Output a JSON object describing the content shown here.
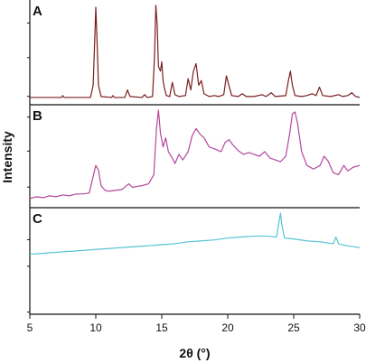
{
  "chart_data": {
    "type": "line",
    "xlabel": "2θ (°)",
    "ylabel": "Intensity",
    "xlim": [
      5,
      30
    ],
    "x_ticks": [
      "5",
      "10",
      "15",
      "20",
      "25",
      "30"
    ],
    "legend": "none",
    "grid": false,
    "panels": [
      {
        "label": "A",
        "color": "#7a1f1f",
        "ylim": [
          0,
          100
        ],
        "points": [
          [
            5.0,
            2
          ],
          [
            7.4,
            2
          ],
          [
            7.5,
            4
          ],
          [
            7.6,
            2
          ],
          [
            9.6,
            2
          ],
          [
            9.8,
            15
          ],
          [
            9.9,
            55
          ],
          [
            10.0,
            98
          ],
          [
            10.1,
            60
          ],
          [
            10.2,
            15
          ],
          [
            10.4,
            3
          ],
          [
            11.2,
            2
          ],
          [
            11.3,
            4
          ],
          [
            11.4,
            2
          ],
          [
            12.2,
            2
          ],
          [
            12.4,
            10
          ],
          [
            12.6,
            3
          ],
          [
            13.5,
            2
          ],
          [
            13.7,
            5
          ],
          [
            13.9,
            2
          ],
          [
            14.3,
            3
          ],
          [
            14.45,
            45
          ],
          [
            14.55,
            100
          ],
          [
            14.65,
            80
          ],
          [
            14.75,
            35
          ],
          [
            14.9,
            30
          ],
          [
            15.0,
            40
          ],
          [
            15.1,
            20
          ],
          [
            15.2,
            12
          ],
          [
            15.35,
            4
          ],
          [
            15.6,
            3
          ],
          [
            15.8,
            18
          ],
          [
            16.0,
            5
          ],
          [
            16.3,
            3
          ],
          [
            16.8,
            4
          ],
          [
            17.0,
            22
          ],
          [
            17.2,
            10
          ],
          [
            17.4,
            30
          ],
          [
            17.6,
            38
          ],
          [
            17.8,
            15
          ],
          [
            18.0,
            20
          ],
          [
            18.2,
            6
          ],
          [
            18.6,
            3
          ],
          [
            19.0,
            4
          ],
          [
            19.3,
            3
          ],
          [
            19.7,
            5
          ],
          [
            19.9,
            25
          ],
          [
            20.1,
            14
          ],
          [
            20.3,
            4
          ],
          [
            20.8,
            3
          ],
          [
            21.1,
            6
          ],
          [
            21.4,
            3
          ],
          [
            22.0,
            3
          ],
          [
            22.6,
            5
          ],
          [
            22.9,
            3
          ],
          [
            23.3,
            7
          ],
          [
            23.6,
            3
          ],
          [
            24.4,
            4
          ],
          [
            24.6,
            20
          ],
          [
            24.75,
            30
          ],
          [
            24.9,
            15
          ],
          [
            25.1,
            4
          ],
          [
            25.6,
            3
          ],
          [
            26.0,
            4
          ],
          [
            26.4,
            6
          ],
          [
            26.7,
            4
          ],
          [
            26.95,
            13
          ],
          [
            27.2,
            4
          ],
          [
            27.8,
            3
          ],
          [
            28.4,
            5
          ],
          [
            28.7,
            3
          ],
          [
            29.1,
            4
          ],
          [
            29.4,
            7
          ],
          [
            29.7,
            3
          ],
          [
            30.0,
            2
          ]
        ]
      },
      {
        "label": "B",
        "color": "#b5479f",
        "ylim": [
          0,
          100
        ],
        "points": [
          [
            5.0,
            4
          ],
          [
            5.5,
            6
          ],
          [
            6.0,
            5
          ],
          [
            6.5,
            7
          ],
          [
            7.0,
            6
          ],
          [
            7.5,
            8
          ],
          [
            8.0,
            7
          ],
          [
            8.5,
            9
          ],
          [
            9.0,
            9
          ],
          [
            9.5,
            10
          ],
          [
            9.8,
            28
          ],
          [
            10.0,
            40
          ],
          [
            10.2,
            35
          ],
          [
            10.4,
            18
          ],
          [
            10.7,
            13
          ],
          [
            11.0,
            12
          ],
          [
            11.5,
            13
          ],
          [
            12.0,
            14
          ],
          [
            12.5,
            20
          ],
          [
            12.8,
            16
          ],
          [
            13.0,
            17
          ],
          [
            13.5,
            18
          ],
          [
            14.0,
            20
          ],
          [
            14.4,
            30
          ],
          [
            14.6,
            80
          ],
          [
            14.75,
            100
          ],
          [
            14.9,
            75
          ],
          [
            15.1,
            60
          ],
          [
            15.3,
            70
          ],
          [
            15.5,
            55
          ],
          [
            15.8,
            48
          ],
          [
            16.0,
            42
          ],
          [
            16.3,
            52
          ],
          [
            16.6,
            46
          ],
          [
            17.0,
            55
          ],
          [
            17.3,
            72
          ],
          [
            17.6,
            80
          ],
          [
            17.9,
            74
          ],
          [
            18.2,
            70
          ],
          [
            18.6,
            60
          ],
          [
            19.0,
            58
          ],
          [
            19.5,
            55
          ],
          [
            19.8,
            65
          ],
          [
            20.1,
            68
          ],
          [
            20.4,
            62
          ],
          [
            20.8,
            56
          ],
          [
            21.2,
            52
          ],
          [
            21.6,
            54
          ],
          [
            22.0,
            52
          ],
          [
            22.4,
            50
          ],
          [
            22.8,
            55
          ],
          [
            23.2,
            48
          ],
          [
            23.6,
            46
          ],
          [
            24.0,
            44
          ],
          [
            24.4,
            50
          ],
          [
            24.7,
            75
          ],
          [
            24.9,
            96
          ],
          [
            25.1,
            98
          ],
          [
            25.3,
            85
          ],
          [
            25.6,
            55
          ],
          [
            26.0,
            40
          ],
          [
            26.5,
            36
          ],
          [
            27.0,
            40
          ],
          [
            27.3,
            50
          ],
          [
            27.6,
            45
          ],
          [
            28.0,
            32
          ],
          [
            28.4,
            30
          ],
          [
            28.8,
            40
          ],
          [
            29.1,
            34
          ],
          [
            29.5,
            38
          ],
          [
            30.0,
            40
          ]
        ]
      },
      {
        "label": "C",
        "color": "#56c3d4",
        "ylim": [
          0,
          100
        ],
        "points": [
          [
            5.0,
            57
          ],
          [
            6.0,
            58
          ],
          [
            7.0,
            59
          ],
          [
            8.0,
            60
          ],
          [
            9.0,
            61
          ],
          [
            10.0,
            62
          ],
          [
            11.0,
            63
          ],
          [
            12.0,
            64
          ],
          [
            13.0,
            65
          ],
          [
            14.0,
            66
          ],
          [
            15.0,
            67
          ],
          [
            16.0,
            68
          ],
          [
            17.0,
            70
          ],
          [
            18.0,
            71
          ],
          [
            19.0,
            72
          ],
          [
            20.0,
            74
          ],
          [
            21.0,
            75
          ],
          [
            22.0,
            76
          ],
          [
            23.0,
            76
          ],
          [
            23.7,
            75
          ],
          [
            23.9,
            92
          ],
          [
            24.0,
            100
          ],
          [
            24.1,
            88
          ],
          [
            24.3,
            74
          ],
          [
            25.0,
            73
          ],
          [
            26.0,
            71
          ],
          [
            27.0,
            70
          ],
          [
            28.0,
            68
          ],
          [
            28.2,
            75
          ],
          [
            28.4,
            68
          ],
          [
            29.0,
            66
          ],
          [
            30.0,
            64
          ]
        ]
      }
    ]
  }
}
